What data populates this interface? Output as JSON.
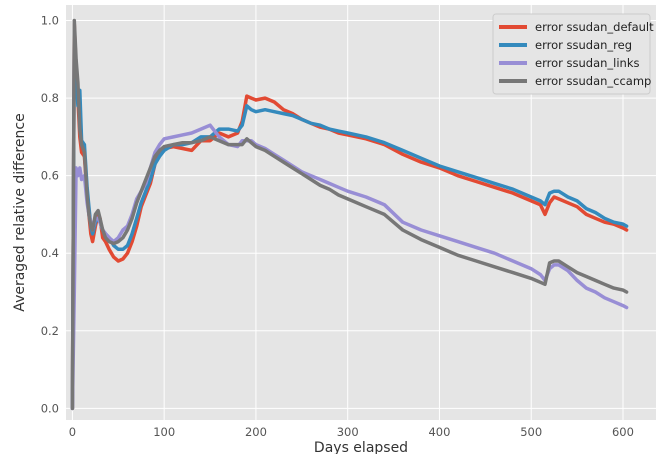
{
  "chart_data": {
    "type": "line",
    "title": "",
    "xlabel": "Days elapsed",
    "ylabel": "Averaged relative difference",
    "xlim": [
      -7,
      636
    ],
    "ylim": [
      -0.03,
      1.04
    ],
    "xticks": [
      0,
      100,
      200,
      300,
      400,
      500,
      600
    ],
    "xtick_labels": [
      "0",
      "100",
      "200",
      "300",
      "400",
      "500",
      "600"
    ],
    "yticks": [
      0.0,
      0.2,
      0.4,
      0.6,
      0.8,
      1.0
    ],
    "ytick_labels": [
      "0.0",
      "0.2",
      "0.4",
      "0.6",
      "0.8",
      "1.0"
    ],
    "grid": true,
    "legend_position": "top-right",
    "background": "#e5e5e5",
    "grid_color": "#ffffff",
    "series": [
      {
        "name": "error ssudan_default",
        "color": "#e24a33",
        "x": [
          0,
          2,
          4,
          6,
          8,
          10,
          13,
          16,
          18,
          20,
          22,
          25,
          28,
          30,
          33,
          36,
          40,
          45,
          50,
          55,
          60,
          65,
          70,
          75,
          80,
          85,
          90,
          95,
          100,
          110,
          120,
          130,
          140,
          150,
          160,
          170,
          180,
          185,
          190,
          195,
          200,
          210,
          220,
          230,
          240,
          250,
          260,
          270,
          280,
          290,
          300,
          320,
          340,
          360,
          380,
          400,
          420,
          440,
          460,
          480,
          500,
          510,
          515,
          520,
          525,
          530,
          540,
          550,
          560,
          570,
          580,
          590,
          600,
          604
        ],
        "y": [
          0.0,
          0.99,
          0.88,
          0.8,
          0.7,
          0.66,
          0.65,
          0.55,
          0.5,
          0.45,
          0.43,
          0.47,
          0.5,
          0.49,
          0.44,
          0.43,
          0.41,
          0.39,
          0.38,
          0.385,
          0.4,
          0.43,
          0.47,
          0.52,
          0.55,
          0.58,
          0.63,
          0.66,
          0.67,
          0.675,
          0.67,
          0.665,
          0.69,
          0.69,
          0.71,
          0.7,
          0.71,
          0.74,
          0.805,
          0.8,
          0.795,
          0.8,
          0.79,
          0.77,
          0.76,
          0.745,
          0.735,
          0.725,
          0.72,
          0.71,
          0.705,
          0.695,
          0.68,
          0.655,
          0.635,
          0.62,
          0.6,
          0.585,
          0.57,
          0.555,
          0.535,
          0.525,
          0.5,
          0.53,
          0.545,
          0.54,
          0.53,
          0.52,
          0.5,
          0.49,
          0.48,
          0.475,
          0.465,
          0.46
        ]
      },
      {
        "name": "error ssudan_reg",
        "color": "#348abd",
        "x": [
          0,
          2,
          4,
          6,
          8,
          10,
          13,
          16,
          18,
          20,
          22,
          25,
          28,
          30,
          33,
          36,
          40,
          45,
          50,
          55,
          60,
          65,
          70,
          75,
          80,
          85,
          90,
          95,
          100,
          110,
          120,
          130,
          140,
          150,
          160,
          170,
          180,
          185,
          190,
          195,
          200,
          210,
          220,
          230,
          240,
          250,
          260,
          270,
          280,
          290,
          300,
          320,
          340,
          360,
          380,
          400,
          420,
          440,
          460,
          480,
          500,
          510,
          515,
          520,
          525,
          530,
          540,
          550,
          560,
          570,
          580,
          590,
          600,
          604
        ],
        "y": [
          0.0,
          0.97,
          0.86,
          0.78,
          0.82,
          0.69,
          0.68,
          0.57,
          0.52,
          0.47,
          0.45,
          0.48,
          0.49,
          0.48,
          0.46,
          0.45,
          0.44,
          0.42,
          0.41,
          0.41,
          0.42,
          0.45,
          0.49,
          0.53,
          0.56,
          0.59,
          0.63,
          0.65,
          0.665,
          0.68,
          0.68,
          0.685,
          0.7,
          0.7,
          0.72,
          0.72,
          0.715,
          0.73,
          0.78,
          0.77,
          0.765,
          0.77,
          0.765,
          0.76,
          0.755,
          0.745,
          0.735,
          0.73,
          0.72,
          0.715,
          0.71,
          0.7,
          0.685,
          0.665,
          0.645,
          0.625,
          0.61,
          0.595,
          0.58,
          0.565,
          0.545,
          0.535,
          0.525,
          0.555,
          0.56,
          0.56,
          0.545,
          0.535,
          0.515,
          0.505,
          0.49,
          0.48,
          0.475,
          0.47
        ]
      },
      {
        "name": "error ssudan_links",
        "color": "#988ed5",
        "x": [
          0,
          2,
          4,
          6,
          8,
          10,
          13,
          16,
          18,
          20,
          22,
          25,
          28,
          30,
          33,
          36,
          40,
          45,
          50,
          55,
          60,
          65,
          70,
          75,
          80,
          85,
          90,
          95,
          100,
          110,
          120,
          130,
          140,
          150,
          160,
          170,
          180,
          185,
          190,
          195,
          200,
          210,
          220,
          230,
          240,
          250,
          260,
          270,
          280,
          290,
          300,
          320,
          340,
          360,
          380,
          400,
          420,
          440,
          460,
          480,
          500,
          510,
          515,
          520,
          525,
          530,
          540,
          550,
          560,
          570,
          580,
          590,
          600,
          604
        ],
        "y": [
          0.0,
          0.3,
          0.62,
          0.6,
          0.62,
          0.59,
          0.6,
          0.53,
          0.5,
          0.48,
          0.46,
          0.49,
          0.49,
          0.48,
          0.46,
          0.45,
          0.44,
          0.43,
          0.44,
          0.46,
          0.47,
          0.5,
          0.54,
          0.56,
          0.58,
          0.62,
          0.66,
          0.68,
          0.695,
          0.7,
          0.705,
          0.71,
          0.72,
          0.73,
          0.7,
          0.68,
          0.675,
          0.69,
          0.69,
          0.69,
          0.68,
          0.67,
          0.655,
          0.64,
          0.625,
          0.61,
          0.6,
          0.59,
          0.58,
          0.57,
          0.56,
          0.545,
          0.525,
          0.48,
          0.46,
          0.445,
          0.43,
          0.415,
          0.4,
          0.38,
          0.36,
          0.345,
          0.33,
          0.36,
          0.37,
          0.37,
          0.355,
          0.33,
          0.31,
          0.3,
          0.285,
          0.275,
          0.265,
          0.26
        ]
      },
      {
        "name": "error ssudan_ccamp",
        "color": "#777777",
        "x": [
          0,
          2,
          4,
          6,
          8,
          10,
          13,
          16,
          18,
          20,
          22,
          25,
          28,
          30,
          33,
          36,
          40,
          45,
          50,
          55,
          60,
          65,
          70,
          75,
          80,
          85,
          90,
          95,
          100,
          110,
          120,
          130,
          140,
          150,
          160,
          170,
          180,
          185,
          190,
          195,
          200,
          210,
          220,
          230,
          240,
          250,
          260,
          270,
          280,
          290,
          300,
          320,
          340,
          360,
          380,
          400,
          420,
          440,
          460,
          480,
          500,
          510,
          515,
          520,
          525,
          530,
          540,
          550,
          560,
          570,
          580,
          590,
          600,
          604
        ],
        "y": [
          0.0,
          1.0,
          0.9,
          0.84,
          0.72,
          0.68,
          0.66,
          0.55,
          0.5,
          0.47,
          0.46,
          0.5,
          0.51,
          0.49,
          0.46,
          0.44,
          0.43,
          0.425,
          0.43,
          0.44,
          0.46,
          0.49,
          0.53,
          0.56,
          0.59,
          0.62,
          0.65,
          0.665,
          0.675,
          0.68,
          0.685,
          0.685,
          0.69,
          0.7,
          0.69,
          0.68,
          0.68,
          0.68,
          0.695,
          0.685,
          0.675,
          0.665,
          0.65,
          0.635,
          0.62,
          0.605,
          0.59,
          0.575,
          0.565,
          0.55,
          0.54,
          0.52,
          0.5,
          0.46,
          0.435,
          0.415,
          0.395,
          0.38,
          0.365,
          0.35,
          0.335,
          0.325,
          0.32,
          0.375,
          0.38,
          0.38,
          0.365,
          0.35,
          0.34,
          0.33,
          0.32,
          0.31,
          0.305,
          0.3
        ]
      }
    ]
  }
}
